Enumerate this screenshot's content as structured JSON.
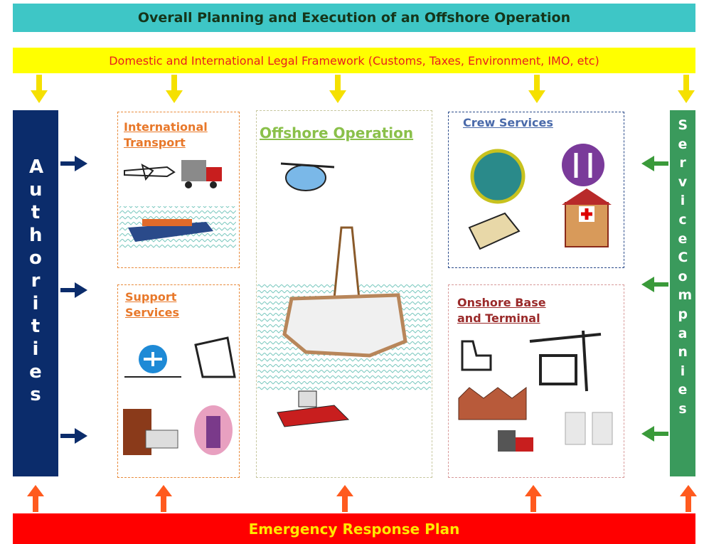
{
  "header": {
    "title": "Overall Planning and Execution of an Offshore Operation"
  },
  "legal_framework": "Domestic and International Legal Framework (Customs, Taxes, Environment, IMO, etc)",
  "left_column": "Authorities",
  "right_column": "Service Companies",
  "boxes": {
    "international_transport": "International Transport",
    "support_services": "Support Services",
    "offshore_operation": "Offshore Operation",
    "crew_services": "Crew Services",
    "onshore_base": "Onshore Base and Terminal"
  },
  "footer": "Emergency Response Plan"
}
